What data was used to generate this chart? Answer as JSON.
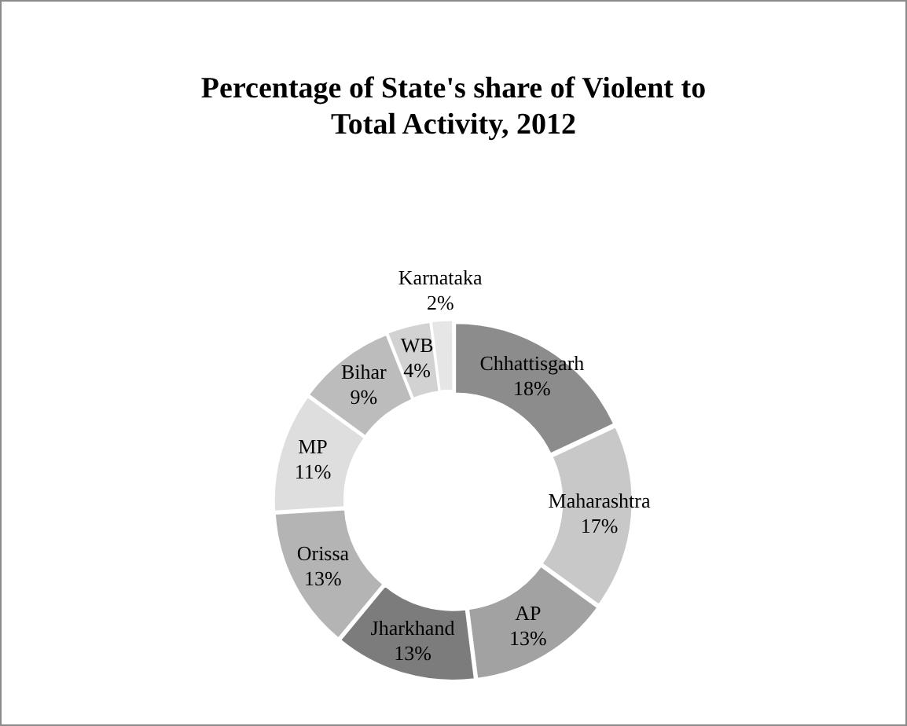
{
  "chart_data": {
    "type": "donut",
    "title": "Percentage of State's share of Violent to Total Activity, 2012",
    "categories": [
      "Chhattisgarh",
      "Maharashtra",
      "AP",
      "Jharkhand",
      "Orissa",
      "MP",
      "Bihar",
      "WB",
      "Karnataka"
    ],
    "values": [
      18,
      17,
      13,
      13,
      13,
      11,
      9,
      4,
      2
    ],
    "value_labels": [
      "18%",
      "17%",
      "13%",
      "13%",
      "13%",
      "11%",
      "9%",
      "4%",
      "2%"
    ],
    "colors": [
      "#8c8c8c",
      "#c8c8c8",
      "#a2a2a2",
      "#7c7c7c",
      "#b4b4b4",
      "#dedede",
      "#bcbcbc",
      "#d2d2d2",
      "#e6e6e6"
    ],
    "legend": false
  }
}
